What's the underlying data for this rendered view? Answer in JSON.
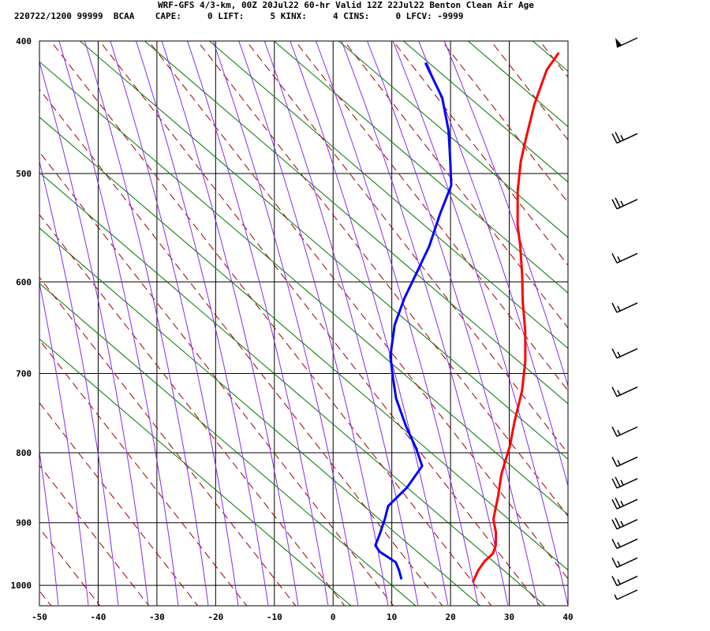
{
  "header": {
    "line1": "WRF-GFS 4/3-km, 00Z 20Jul22 60-hr Valid 12Z 22Jul22 Benton Clean Air Age",
    "line2": "220722/1200 99999  BCAA    CAPE:     0 LIFT:     5 KINX:     4 CINS:     0 LFCV: -9999"
  },
  "colors": {
    "temperature": "#ff0000",
    "dewpoint": "#0000ff",
    "dry_adiabat": "#990000",
    "moist_adiabat": "#8a2be2",
    "isotherm_skew": "#007700",
    "grid": "#000000"
  },
  "chart_data": {
    "type": "line",
    "title": "",
    "xlabel": "",
    "ylabel": "",
    "xlim": [
      -50,
      40
    ],
    "ylim": [
      1035,
      400
    ],
    "x_ticks": [
      -50,
      -40,
      -30,
      -20,
      -10,
      0,
      10,
      20,
      30,
      40
    ],
    "y_ticks": [
      400,
      500,
      600,
      700,
      800,
      900,
      1000
    ],
    "grid": true,
    "legend": "none",
    "series": [
      {
        "color": "#ff0000",
        "points": [
          [
            21,
            995
          ],
          [
            20.5,
            975
          ],
          [
            20.5,
            960
          ],
          [
            21,
            948
          ],
          [
            20.5,
            935
          ],
          [
            19,
            915
          ],
          [
            17,
            895
          ],
          [
            15,
            860
          ],
          [
            13,
            830
          ],
          [
            11,
            790
          ],
          [
            9,
            760
          ],
          [
            6.5,
            720
          ],
          [
            3.5,
            685
          ],
          [
            0,
            652
          ],
          [
            -4,
            620
          ],
          [
            -7,
            595
          ],
          [
            -11,
            565
          ],
          [
            -14,
            545
          ],
          [
            -18,
            515
          ],
          [
            -21,
            490
          ],
          [
            -23,
            470
          ],
          [
            -25.5,
            445
          ],
          [
            -27.5,
            420
          ],
          [
            -27.5,
            408
          ]
        ]
      },
      {
        "color": "#0000ff",
        "points": [
          [
            8.5,
            990
          ],
          [
            7,
            975
          ],
          [
            5.5,
            962
          ],
          [
            1.5,
            945
          ],
          [
            0,
            935
          ],
          [
            -0.5,
            920
          ],
          [
            -1.5,
            895
          ],
          [
            -2.5,
            875
          ],
          [
            -1.5,
            848
          ],
          [
            -1.5,
            818
          ],
          [
            -4.5,
            795
          ],
          [
            -9,
            765
          ],
          [
            -14,
            730
          ],
          [
            -17,
            705
          ],
          [
            -20,
            680
          ],
          [
            -23,
            645
          ],
          [
            -24.5,
            617
          ],
          [
            -25.5,
            590
          ],
          [
            -26.5,
            565
          ],
          [
            -28.5,
            535
          ],
          [
            -30,
            510
          ],
          [
            -33,
            490
          ],
          [
            -37,
            465
          ],
          [
            -42,
            440
          ],
          [
            -49,
            415
          ]
        ]
      }
    ]
  },
  "wind_barbs": [
    {
      "pressure": 400,
      "half_barbs": 0,
      "full_barbs": 0,
      "flags": 1
    },
    {
      "pressure": 470,
      "half_barbs": 1,
      "full_barbs": 2,
      "flags": 0
    },
    {
      "pressure": 525,
      "half_barbs": 1,
      "full_barbs": 2,
      "flags": 0
    },
    {
      "pressure": 575,
      "half_barbs": 1,
      "full_barbs": 1,
      "flags": 0
    },
    {
      "pressure": 625,
      "half_barbs": 1,
      "full_barbs": 1,
      "flags": 0
    },
    {
      "pressure": 675,
      "half_barbs": 1,
      "full_barbs": 1,
      "flags": 0
    },
    {
      "pressure": 720,
      "half_barbs": 1,
      "full_barbs": 1,
      "flags": 0
    },
    {
      "pressure": 770,
      "half_barbs": 1,
      "full_barbs": 1,
      "flags": 0
    },
    {
      "pressure": 810,
      "half_barbs": 1,
      "full_barbs": 1,
      "flags": 0
    },
    {
      "pressure": 840,
      "half_barbs": 1,
      "full_barbs": 2,
      "flags": 0
    },
    {
      "pressure": 870,
      "half_barbs": 1,
      "full_barbs": 2,
      "flags": 0
    },
    {
      "pressure": 900,
      "half_barbs": 1,
      "full_barbs": 2,
      "flags": 0
    },
    {
      "pressure": 930,
      "half_barbs": 1,
      "full_barbs": 1,
      "flags": 0
    },
    {
      "pressure": 960,
      "half_barbs": 1,
      "full_barbs": 1,
      "flags": 0
    },
    {
      "pressure": 990,
      "half_barbs": 1,
      "full_barbs": 1,
      "flags": 0
    },
    {
      "pressure": 1030,
      "half_barbs": 1,
      "full_barbs": 0,
      "flags": 0
    }
  ]
}
